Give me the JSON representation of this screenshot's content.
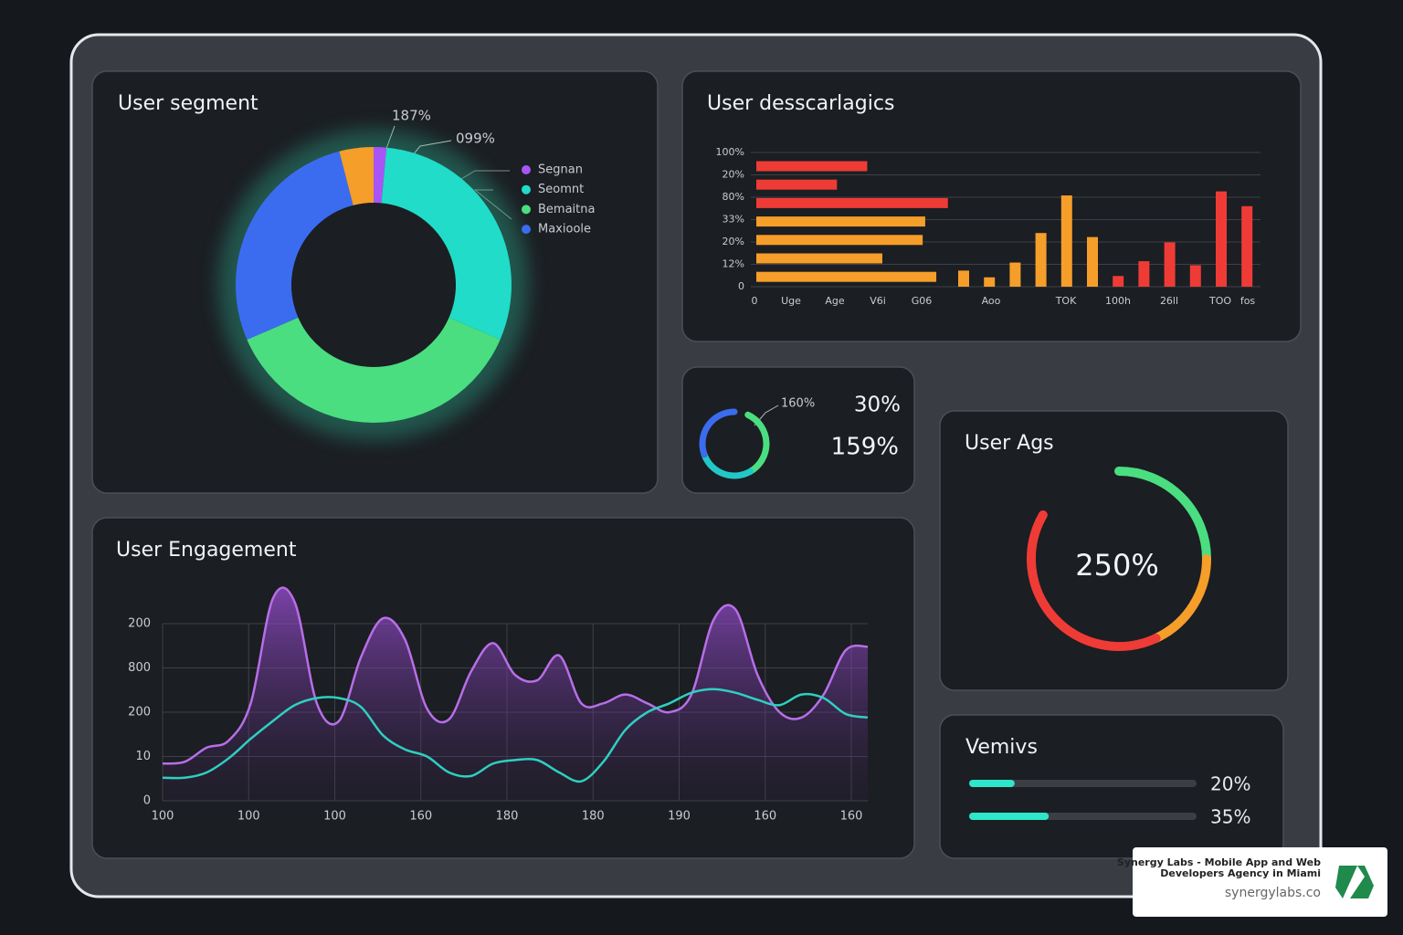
{
  "chart_data": [
    {
      "type": "pie",
      "title": "User segment",
      "categories": [
        "Segnan",
        "Seomnt",
        "Bemaitna",
        "Maxioole",
        null
      ],
      "values": [
        1.5,
        30,
        37,
        27.5,
        4
      ],
      "colors": [
        "#a855f7",
        "#20dcc8",
        "#4ade80",
        "#3b6cf0",
        "#f59e2a"
      ],
      "annotations": [
        "187%",
        "099%"
      ]
    },
    {
      "type": "bar",
      "title": "User desscarlagics",
      "horizontal": {
        "categories": [
          "100%",
          "20%",
          "80%",
          "33%",
          "20%",
          "12%",
          "0"
        ],
        "values": [
          22,
          16,
          38,
          33.5,
          33,
          25,
          35.7
        ],
        "colors": [
          "#ef3b36",
          "#ef3b36",
          "#ef3b36",
          "#f59e2a",
          "#f59e2a",
          "#f59e2a",
          "#f59e2a"
        ],
        "xlim": [
          0,
          100
        ]
      },
      "vertical": {
        "values": [
          12,
          7,
          18,
          40,
          68,
          37,
          8,
          19,
          33,
          16,
          71,
          60
        ],
        "colors": [
          "#f59e2a",
          "#f59e2a",
          "#f59e2a",
          "#f59e2a",
          "#f59e2a",
          "#f59e2a",
          "#ef3b36",
          "#ef3b36",
          "#ef3b36",
          "#ef3b36",
          "#ef3b36",
          "#ef3b36"
        ],
        "ylim": [
          0,
          100
        ]
      },
      "x_labels": [
        "0",
        "Uge",
        "Age",
        "V6i",
        "G06",
        "Aoo",
        "TOK",
        "100h",
        "26ll",
        "TOO",
        "fos"
      ]
    },
    {
      "type": "line",
      "title": "User Engagement",
      "y_labels": [
        "200",
        "800",
        "200",
        "10",
        "0"
      ],
      "x_labels": [
        "100",
        "100",
        "100",
        "160",
        "180",
        "180",
        "190",
        "160",
        "160"
      ],
      "ylim": [
        0,
        100
      ],
      "grid": true,
      "series": [
        {
          "color": "#b86ee8",
          "values": [
            21,
            22,
            30,
            34,
            55,
            114,
            112,
            55,
            45,
            81,
            103,
            91,
            52,
            46,
            73,
            89,
            71,
            68,
            82,
            55,
            55,
            60,
            55,
            50,
            60,
            102,
            108,
            71,
            50,
            47,
            60,
            85,
            87
          ]
        },
        {
          "color": "#2fcfc0",
          "values": [
            13,
            13,
            16,
            24,
            35,
            45,
            54,
            58,
            58,
            53,
            37,
            29,
            25,
            16,
            14,
            21,
            23,
            23,
            16,
            11,
            22,
            40,
            50,
            55,
            61,
            63,
            61,
            57,
            54,
            60,
            58,
            49,
            47
          ]
        }
      ]
    },
    {
      "type": "progress",
      "title": "Vemivs",
      "values": [
        20,
        35
      ],
      "value_labels": [
        "20%",
        "35%"
      ],
      "xlim": [
        0,
        100
      ],
      "color": "#2ee6c9"
    }
  ],
  "ring_widget": {
    "labels": [
      "160%",
      "30%",
      "159%"
    ]
  },
  "age_widget": {
    "title": "User Ags",
    "label": "250%"
  },
  "badge": {
    "line1": "Synergy Labs - Mobile App and Web",
    "line2": "Developers Agency in Miami",
    "url": "synergylabs.co"
  }
}
